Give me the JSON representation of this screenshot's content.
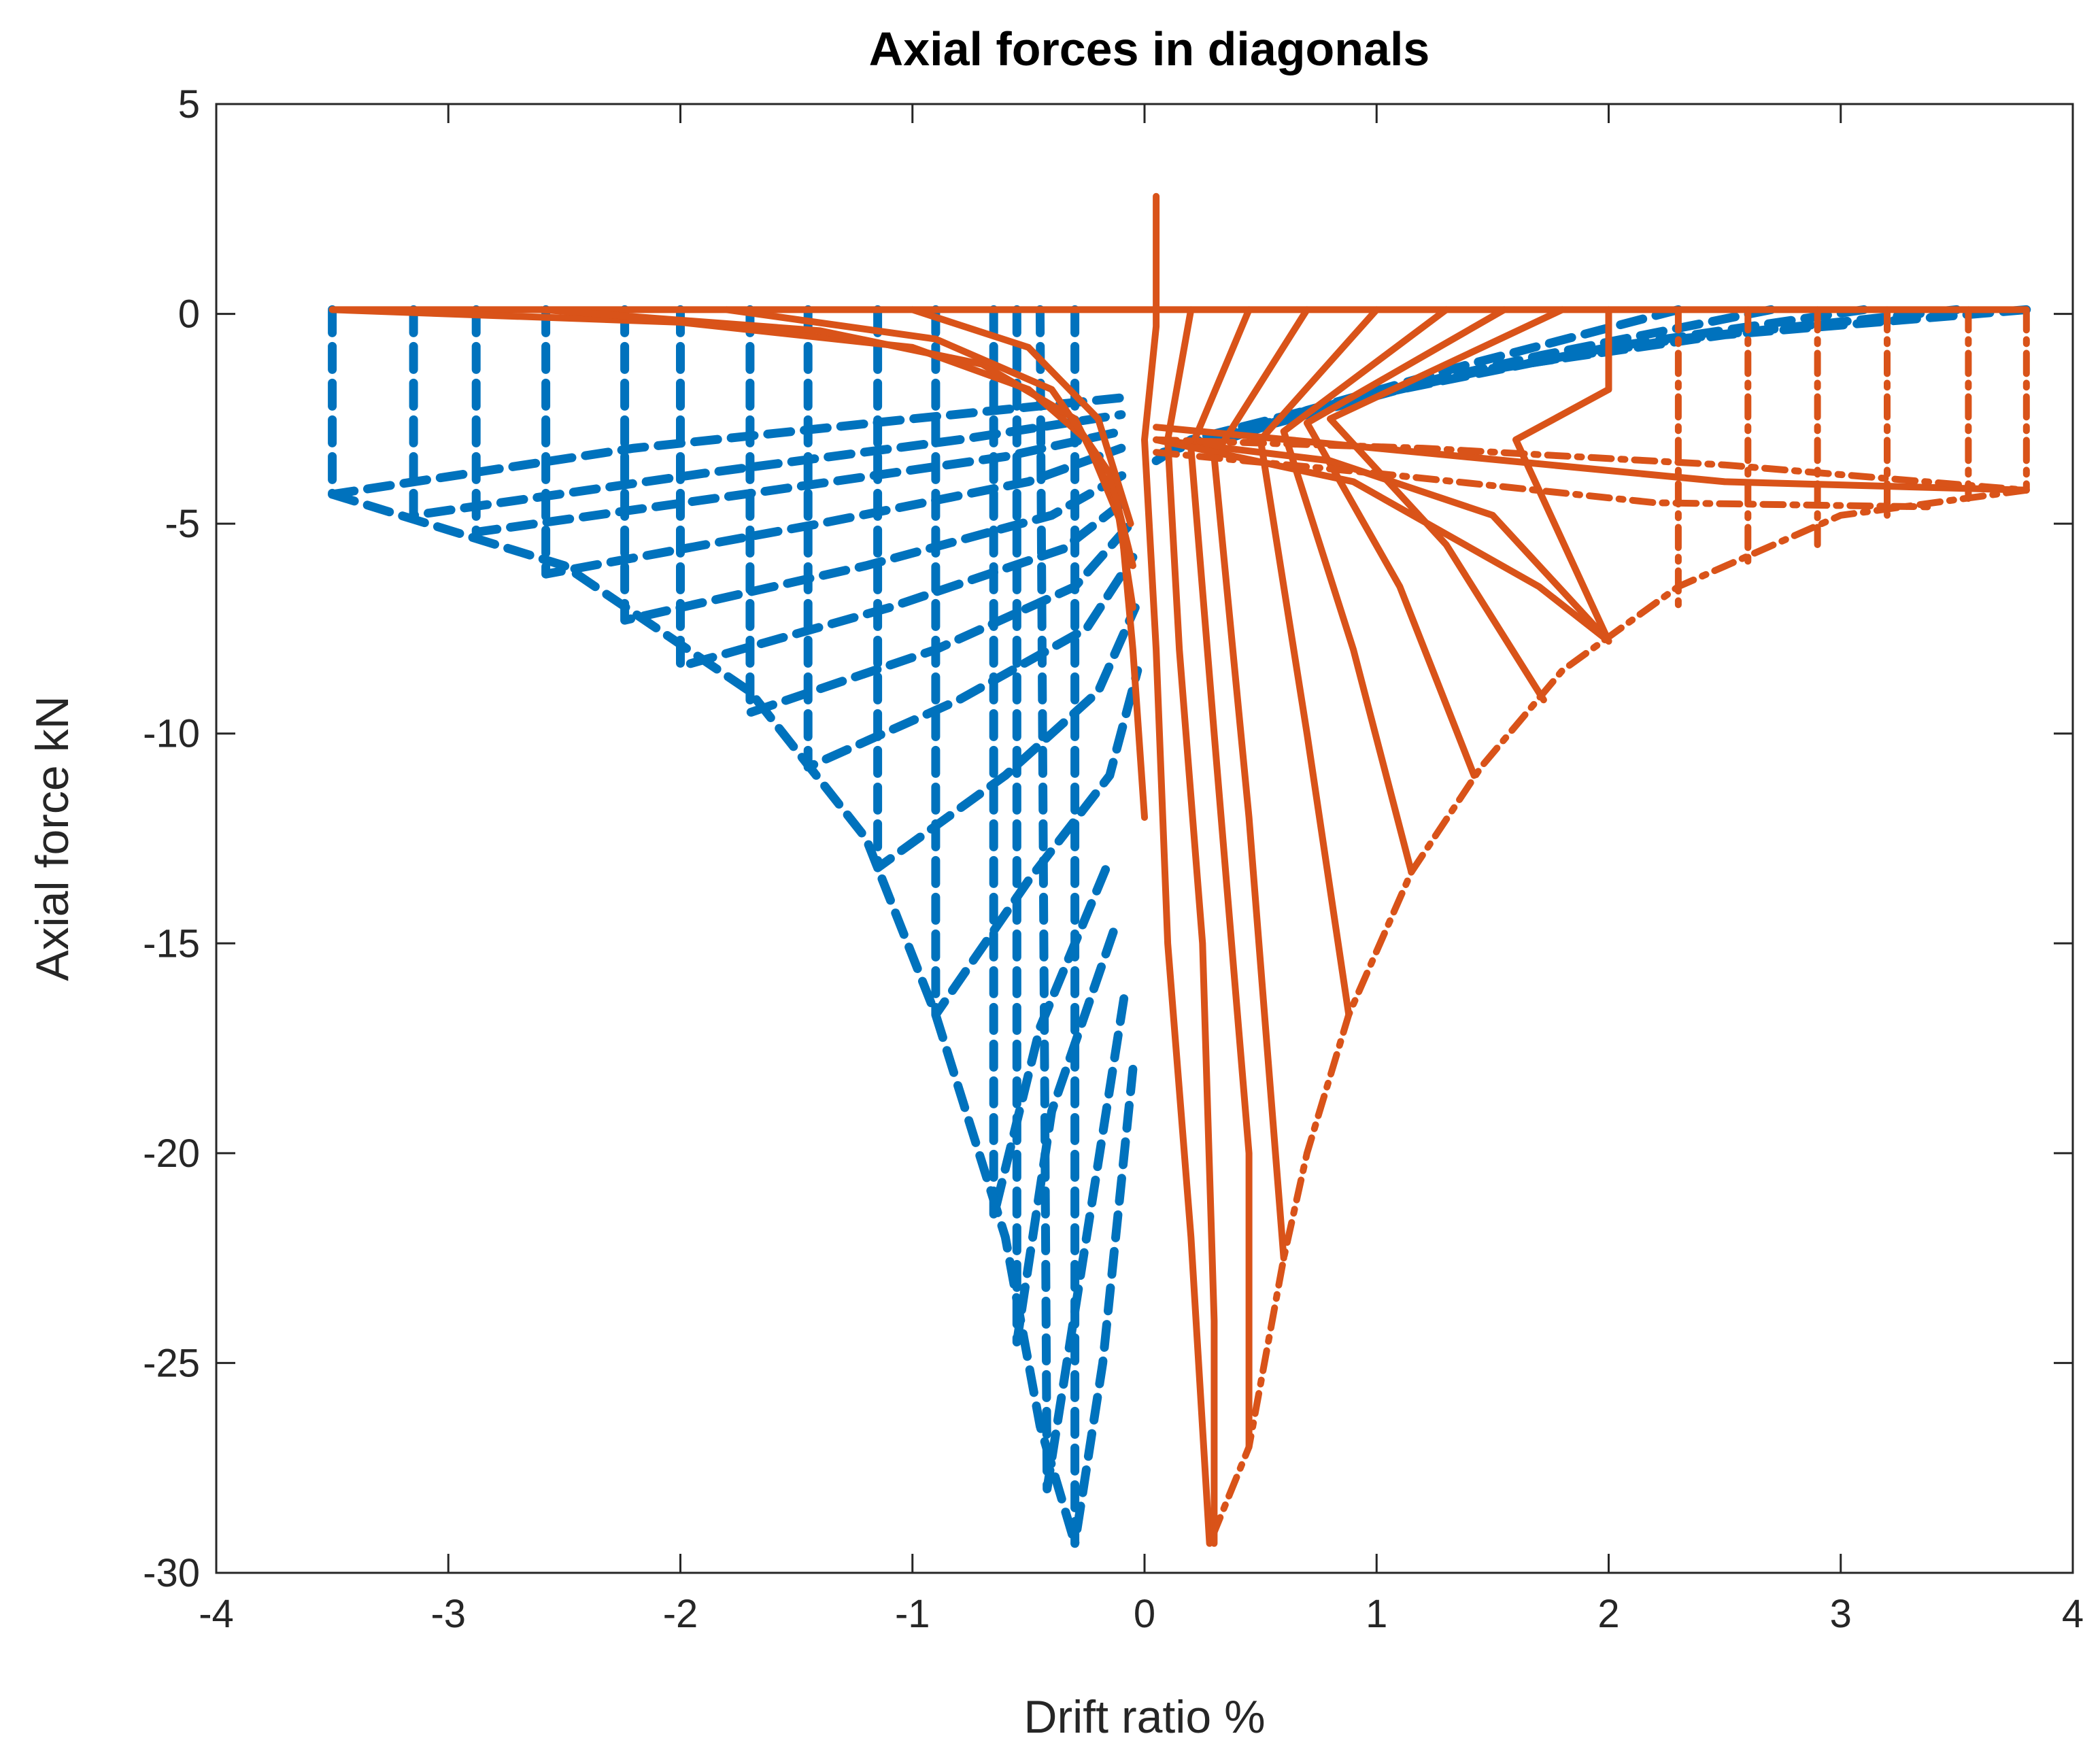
{
  "chart_data": {
    "type": "line",
    "title": "Axial forces in diagonals",
    "xlabel": "Drift ratio %",
    "ylabel": "Axial force kN",
    "xlim": [
      -4,
      4
    ],
    "ylim": [
      -30,
      5
    ],
    "xticks": [
      "-4",
      "-3",
      "-2",
      "-1",
      "0",
      "1",
      "2",
      "3",
      "4"
    ],
    "yticks": [
      "5",
      "0",
      "-5",
      "-10",
      "-15",
      "-20",
      "-25",
      "-30"
    ],
    "grid": false,
    "colors": {
      "blue": "#0072BD",
      "orange": "#D95319"
    },
    "series": [
      {
        "color": "#0072BD",
        "style": "dashed",
        "paths": [
          [
            [
              -3.5,
              0.1
            ],
            [
              -3.5,
              -4.3
            ],
            [
              -2.2,
              -3.2
            ],
            [
              -1.0,
              -2.5
            ],
            [
              -0.1,
              -2.0
            ]
          ],
          [
            [
              -3.15,
              0.1
            ],
            [
              -3.15,
              -4.8
            ],
            [
              -1.9,
              -3.8
            ],
            [
              -0.8,
              -3.0
            ],
            [
              -0.1,
              -2.4
            ]
          ],
          [
            [
              -2.88,
              0.1
            ],
            [
              -2.88,
              -5.2
            ],
            [
              -1.6,
              -4.2
            ],
            [
              -0.6,
              -3.4
            ],
            [
              -0.1,
              -2.8
            ]
          ],
          [
            [
              -2.58,
              0.1
            ],
            [
              -2.58,
              -6.2
            ],
            [
              -1.4,
              -5.0
            ],
            [
              -0.5,
              -4.0
            ],
            [
              -0.1,
              -3.2
            ]
          ],
          [
            [
              -2.24,
              0.1
            ],
            [
              -2.24,
              -7.3
            ],
            [
              -1.2,
              -6.0
            ],
            [
              -0.4,
              -4.8
            ],
            [
              -0.08,
              -3.8
            ]
          ],
          [
            [
              -2.0,
              0.1
            ],
            [
              -2.0,
              -8.4
            ],
            [
              -1.1,
              -7.0
            ],
            [
              -0.35,
              -5.6
            ],
            [
              -0.07,
              -4.4
            ]
          ],
          [
            [
              -1.7,
              0.1
            ],
            [
              -1.7,
              -9.5
            ],
            [
              -0.9,
              -8.0
            ],
            [
              -0.3,
              -6.5
            ],
            [
              -0.06,
              -5.0
            ]
          ],
          [
            [
              -1.45,
              0.1
            ],
            [
              -1.45,
              -10.8
            ],
            [
              -0.8,
              -9.2
            ],
            [
              -0.25,
              -7.5
            ],
            [
              -0.05,
              -5.8
            ]
          ],
          [
            [
              -1.15,
              0.1
            ],
            [
              -1.15,
              -13.2
            ],
            [
              -0.6,
              -11.0
            ],
            [
              -0.2,
              -9.0
            ],
            [
              -0.04,
              -7.0
            ]
          ],
          [
            [
              -0.9,
              0.1
            ],
            [
              -0.9,
              -16.7
            ],
            [
              -0.5,
              -13.5
            ],
            [
              -0.15,
              -11.0
            ],
            [
              -0.03,
              -8.5
            ]
          ],
          [
            [
              -0.65,
              0.1
            ],
            [
              -0.65,
              -21.5
            ],
            [
              -0.45,
              -17.0
            ],
            [
              -0.15,
              -13.0
            ]
          ],
          [
            [
              -0.55,
              0.1
            ],
            [
              -0.55,
              -24.5
            ],
            [
              -0.4,
              -19.0
            ],
            [
              -0.12,
              -14.5
            ]
          ],
          [
            [
              -0.45,
              0.1
            ],
            [
              -0.42,
              -28.0
            ],
            [
              -0.25,
              -22.0
            ],
            [
              -0.08,
              -16.0
            ]
          ],
          [
            [
              -0.3,
              0.1
            ],
            [
              -0.3,
              -29.3
            ],
            [
              -0.18,
              -25.0
            ],
            [
              -0.05,
              -18.0
            ]
          ],
          [
            [
              -3.5,
              -4.3
            ],
            [
              -2.5,
              -6.0
            ],
            [
              -1.7,
              -9.0
            ],
            [
              -1.2,
              -12.5
            ],
            [
              -0.9,
              -16.7
            ],
            [
              -0.6,
              -22.0
            ],
            [
              -0.45,
              -26.5
            ],
            [
              -0.3,
              -29.3
            ]
          ],
          [
            [
              3.8,
              0.1
            ],
            [
              2.5,
              -0.5
            ],
            [
              1.5,
              -1.3
            ],
            [
              0.7,
              -2.3
            ],
            [
              0.2,
              -3.0
            ],
            [
              0.05,
              -3.5
            ]
          ],
          [
            [
              3.5,
              0.1
            ],
            [
              2.3,
              -0.6
            ],
            [
              1.3,
              -1.5
            ],
            [
              0.6,
              -2.5
            ],
            [
              0.1,
              -3.2
            ]
          ],
          [
            [
              3.1,
              0.1
            ],
            [
              2.0,
              -0.8
            ],
            [
              1.1,
              -1.8
            ],
            [
              0.5,
              -2.7
            ],
            [
              0.08,
              -3.3
            ]
          ],
          [
            [
              2.7,
              0.1
            ],
            [
              1.7,
              -1.0
            ],
            [
              0.9,
              -2.0
            ],
            [
              0.4,
              -2.9
            ]
          ],
          [
            [
              2.3,
              0.1
            ],
            [
              1.4,
              -1.2
            ],
            [
              0.7,
              -2.3
            ],
            [
              0.3,
              -3.1
            ]
          ]
        ]
      },
      {
        "color": "#D95319",
        "style": "solid",
        "paths": [
          [
            [
              -3.5,
              0.1
            ],
            [
              3.8,
              0.1
            ]
          ],
          [
            [
              -3.5,
              0.1
            ],
            [
              -2.0,
              -0.2
            ],
            [
              -1.0,
              -0.8
            ],
            [
              -0.5,
              -1.8
            ],
            [
              -0.25,
              -3.0
            ],
            [
              -0.1,
              -5.0
            ],
            [
              -0.05,
              -8.0
            ],
            [
              0.0,
              -12.0
            ]
          ],
          [
            [
              -2.6,
              0.1
            ],
            [
              -1.4,
              -0.4
            ],
            [
              -0.7,
              -1.2
            ],
            [
              -0.3,
              -2.5
            ],
            [
              -0.12,
              -4.5
            ],
            [
              -0.05,
              -7.0
            ]
          ],
          [
            [
              -1.8,
              0.1
            ],
            [
              -0.9,
              -0.6
            ],
            [
              -0.4,
              -1.8
            ],
            [
              -0.15,
              -3.8
            ],
            [
              -0.05,
              -6.0
            ]
          ],
          [
            [
              -1.0,
              0.1
            ],
            [
              -0.5,
              -0.8
            ],
            [
              -0.2,
              -2.5
            ],
            [
              -0.06,
              -5.0
            ]
          ],
          [
            [
              0.05,
              2.8
            ],
            [
              0.05,
              -0.3
            ],
            [
              0.0,
              -3.0
            ],
            [
              0.05,
              -8.0
            ],
            [
              0.1,
              -15.0
            ],
            [
              0.2,
              -22.0
            ],
            [
              0.28,
              -29.3
            ]
          ],
          [
            [
              0.2,
              0.1
            ],
            [
              0.1,
              -3.0
            ],
            [
              0.15,
              -8.0
            ],
            [
              0.25,
              -15.0
            ],
            [
              0.3,
              -24.0
            ],
            [
              0.3,
              -29.3
            ]
          ],
          [
            [
              0.45,
              0.1
            ],
            [
              0.2,
              -3.2
            ],
            [
              0.3,
              -10.0
            ],
            [
              0.45,
              -20.0
            ],
            [
              0.45,
              -27.0
            ]
          ],
          [
            [
              0.7,
              0.1
            ],
            [
              0.3,
              -3.4
            ],
            [
              0.45,
              -12.0
            ],
            [
              0.6,
              -22.5
            ]
          ],
          [
            [
              1.0,
              0.1
            ],
            [
              0.5,
              -3.0
            ],
            [
              0.7,
              -10.0
            ],
            [
              0.88,
              -16.7
            ]
          ],
          [
            [
              1.3,
              0.1
            ],
            [
              0.6,
              -2.8
            ],
            [
              0.9,
              -8.0
            ],
            [
              1.15,
              -13.3
            ]
          ],
          [
            [
              1.55,
              0.1
            ],
            [
              0.7,
              -2.6
            ],
            [
              1.1,
              -6.5
            ],
            [
              1.42,
              -11.0
            ]
          ],
          [
            [
              1.8,
              0.1
            ],
            [
              0.8,
              -2.5
            ],
            [
              1.3,
              -5.5
            ],
            [
              1.72,
              -9.2
            ]
          ],
          [
            [
              2.0,
              0.1
            ],
            [
              2.0,
              -1.8
            ],
            [
              1.6,
              -3.0
            ],
            [
              2.0,
              -7.8
            ]
          ],
          [
            [
              0.05,
              -3.0
            ],
            [
              0.8,
              -3.5
            ],
            [
              1.5,
              -4.8
            ],
            [
              2.0,
              -7.8
            ]
          ],
          [
            [
              0.05,
              -3.0
            ],
            [
              0.9,
              -4.0
            ],
            [
              1.7,
              -6.5
            ],
            [
              2.0,
              -7.8
            ]
          ],
          [
            [
              0.05,
              -2.7
            ],
            [
              1.0,
              -3.2
            ],
            [
              2.5,
              -4.0
            ],
            [
              3.8,
              -4.2
            ]
          ]
        ]
      },
      {
        "color": "#D95319",
        "style": "dashdot",
        "paths": [
          [
            [
              3.8,
              0.1
            ],
            [
              3.8,
              -4.2
            ]
          ],
          [
            [
              3.55,
              0.1
            ],
            [
              3.55,
              -4.4
            ]
          ],
          [
            [
              3.2,
              0.1
            ],
            [
              3.2,
              -4.8
            ]
          ],
          [
            [
              2.9,
              0.1
            ],
            [
              2.9,
              -5.5
            ]
          ],
          [
            [
              2.6,
              0.1
            ],
            [
              2.6,
              -6.0
            ]
          ],
          [
            [
              2.3,
              0.1
            ],
            [
              2.3,
              -7.0
            ]
          ],
          [
            [
              3.8,
              -4.2
            ],
            [
              3.0,
              -4.8
            ],
            [
              2.3,
              -6.5
            ],
            [
              1.8,
              -8.5
            ],
            [
              1.45,
              -10.8
            ],
            [
              1.15,
              -13.3
            ],
            [
              0.88,
              -16.7
            ],
            [
              0.7,
              -20.0
            ],
            [
              0.6,
              -22.5
            ],
            [
              0.45,
              -27.0
            ],
            [
              0.28,
              -29.3
            ]
          ],
          [
            [
              0.05,
              -3.0
            ],
            [
              1.2,
              -3.2
            ],
            [
              2.5,
              -3.6
            ],
            [
              3.8,
              -4.2
            ]
          ],
          [
            [
              0.05,
              -3.3
            ],
            [
              1.0,
              -3.8
            ],
            [
              2.2,
              -4.5
            ],
            [
              3.4,
              -4.6
            ]
          ]
        ]
      }
    ]
  }
}
